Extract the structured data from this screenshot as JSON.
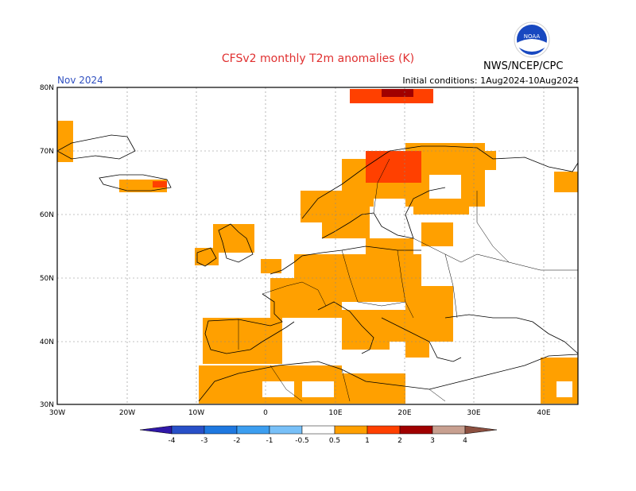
{
  "header": {
    "title": "CFSv2 monthly T2m anomalies (K)",
    "month": "Nov 2024",
    "initial_conditions": "Initial conditions: 1Aug2024-10Aug2024",
    "agency": "NWS/NCEP/CPC",
    "logo_text": "NOAA"
  },
  "map": {
    "projection": "lat-lon",
    "lon_range": [
      -30,
      45
    ],
    "lat_range": [
      30,
      80
    ],
    "lat_labels": [
      "30N",
      "40N",
      "50N",
      "60N",
      "70N",
      "80N"
    ],
    "lon_labels": [
      "30W",
      "20W",
      "10W",
      "0",
      "10E",
      "20E",
      "30E",
      "40E"
    ],
    "grid": true
  },
  "colorbar": {
    "labels": [
      "-4",
      "-3",
      "-2",
      "-1",
      "-0.5",
      "0.5",
      "1",
      "2",
      "3",
      "4"
    ],
    "colors": [
      "#3018a8",
      "#2850c8",
      "#1e78e0",
      "#3c9ef0",
      "#78c0f8",
      "#ffffff",
      "#ffa000",
      "#ff4000",
      "#a00000",
      "#c8a090",
      "#8c5040"
    ]
  },
  "colors": {
    "warm_0_5_1": "#ffa000",
    "warm_1_2": "#ff4000",
    "warm_2_3": "#a00000"
  }
}
